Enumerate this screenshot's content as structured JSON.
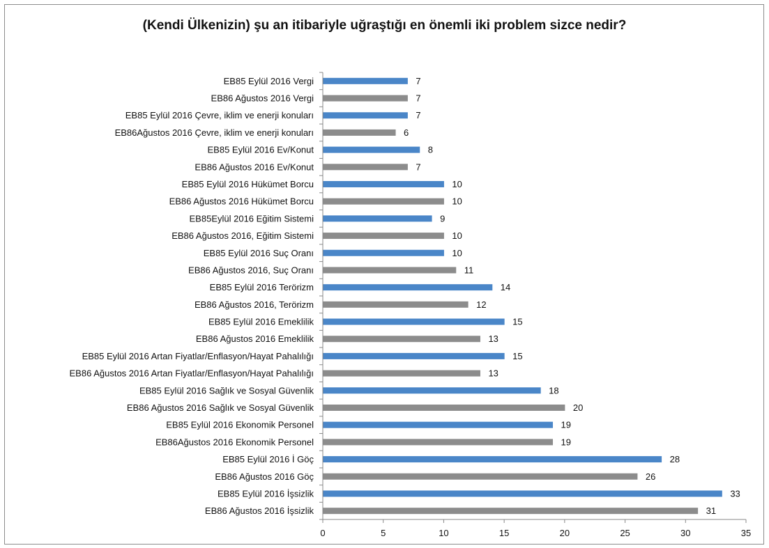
{
  "chart_data": {
    "type": "bar",
    "orientation": "horizontal",
    "title": "(Kendi Ülkenizin) şu an itibariyle uğraştığı en önemli iki problem sizce nedir?",
    "xlabel": "",
    "ylabel": "",
    "xlim": [
      0,
      35
    ],
    "xticks": [
      0,
      5,
      10,
      15,
      20,
      25,
      30,
      35
    ],
    "grid": false,
    "legend": "none",
    "colors": {
      "EB85": "#4a86c8",
      "EB86": "#8c8c8c"
    },
    "categories": [
      "EB85 Eylül 2016  Vergi",
      "EB86 Ağustos 2016  Vergi",
      "EB85 Eylül 2016 Çevre, iklim ve enerji konuları",
      "EB86Ağustos 2016 Çevre, iklim ve enerji konuları",
      "EB85 Eylül 2016  Ev/Konut",
      "EB86 Ağustos 2016 Ev/Konut",
      "EB85 Eylül 2016 Hükümet Borcu",
      "EB86 Ağustos 2016 Hükümet Borcu",
      "EB85Eylül 2016 Eğitim Sistemi",
      "EB86 Ağustos 2016, Eğitim Sistemi",
      "EB85 Eylül 2016 Suç Oranı",
      "EB86 Ağustos 2016, Suç Oranı",
      "EB85 Eylül 2016 Terörizm",
      "EB86 Ağustos 2016, Terörizm",
      "EB85 Eylül 2016 Emeklilik",
      "EB86 Ağustos 2016 Emeklilik",
      "EB85 Eylül 2016 Artan Fiyatlar/Enflasyon/Hayat Pahalılığı",
      "EB86 Ağustos 2016 Artan Fiyatlar/Enflasyon/Hayat Pahalılığı",
      "EB85 Eylül 2016 Sağlık  ve Sosyal Güvenlik",
      "EB86 Ağustos 2016 Sağlık  ve Sosyal Güvenlik",
      "EB85 Eylül 2016 Ekonomik Personel",
      "EB86Ağustos 2016 Ekonomik Personel",
      "EB85 Eylül 2016 İ Göç",
      "EB86 Ağustos 2016 Göç",
      "EB85 Eylül 2016 İşsizlik",
      "EB86 Ağustos 2016 İşsizlik"
    ],
    "values": [
      7,
      7,
      7,
      6,
      8,
      7,
      10,
      10,
      9,
      10,
      10,
      11,
      14,
      12,
      15,
      13,
      15,
      13,
      18,
      20,
      19,
      19,
      28,
      26,
      33,
      31
    ]
  }
}
